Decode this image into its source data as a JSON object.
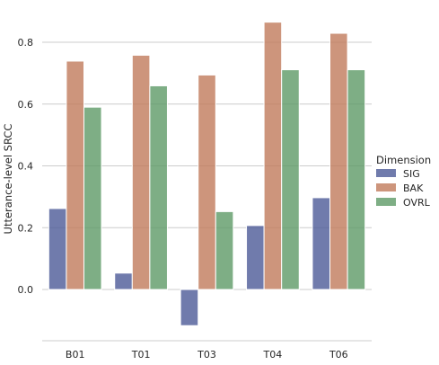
{
  "chart_data": {
    "type": "bar",
    "ylabel": "Utterance-level SRCC",
    "xlabel": "",
    "categories": [
      "B01",
      "T01",
      "T03",
      "T04",
      "T06"
    ],
    "series": [
      {
        "name": "SIG",
        "color": "#4c5a97",
        "values": [
          0.262,
          0.053,
          -0.117,
          0.207,
          0.297
        ]
      },
      {
        "name": "BAK",
        "color": "#c07b5b",
        "values": [
          0.739,
          0.758,
          0.694,
          0.865,
          0.829
        ]
      },
      {
        "name": "OVRL",
        "color": "#5e9a66",
        "values": [
          0.59,
          0.659,
          0.252,
          0.711,
          0.711
        ]
      }
    ],
    "ylim": [
      -0.17,
      0.93
    ],
    "yticks": [
      0.0,
      0.2,
      0.4,
      0.6,
      0.8
    ],
    "ytick_labels": [
      "0.0",
      "0.2",
      "0.4",
      "0.6",
      "0.8"
    ],
    "grid": "horizontal",
    "legend": {
      "title": "Dimension",
      "placement": "right"
    }
  }
}
